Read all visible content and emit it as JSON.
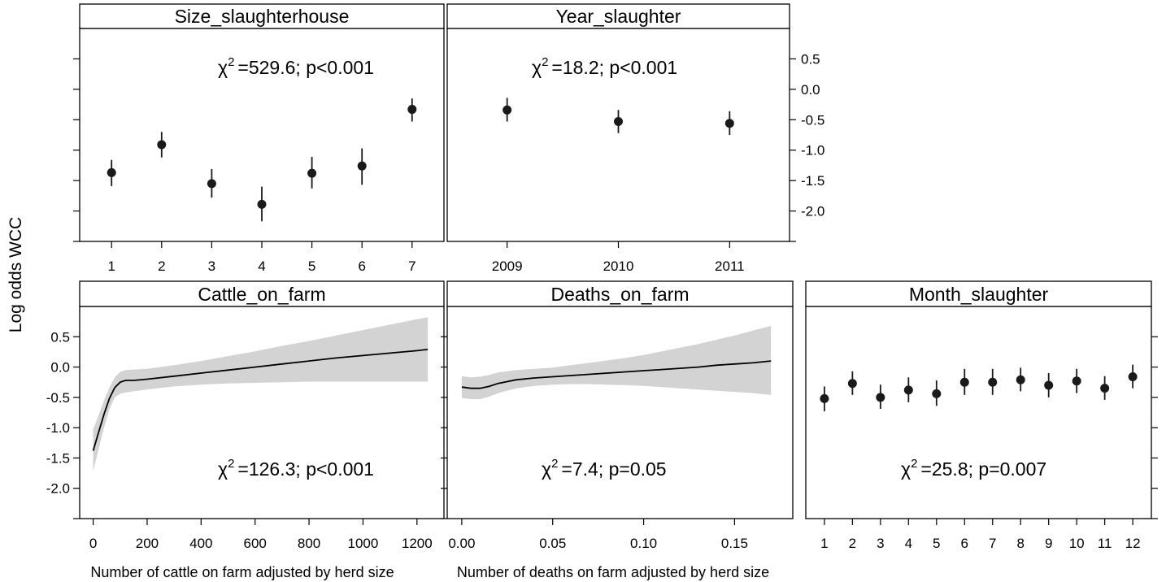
{
  "y_axis_label": "Log odds WCC",
  "chart_data": [
    {
      "type": "scatter",
      "title": "Size_slaughterhouse",
      "annotation": "=529.6; p<0.001",
      "annotation_symbol": "χ",
      "annotation_sup": "2",
      "xlabel": "",
      "ylabel": "Log odds WCC",
      "categories": [
        "1",
        "2",
        "3",
        "4",
        "5",
        "6",
        "7"
      ],
      "values": [
        -1.37,
        -0.91,
        -1.55,
        -1.89,
        -1.38,
        -1.26,
        -0.33
      ],
      "ci_low": [
        -1.59,
        -1.12,
        -1.78,
        -2.17,
        -1.63,
        -1.57,
        -0.53
      ],
      "ci_high": [
        -1.16,
        -0.7,
        -1.31,
        -1.6,
        -1.11,
        -0.97,
        -0.15
      ],
      "ylim": [
        -2.5,
        1.0
      ],
      "y_ticks": [
        "0.5",
        "0.0",
        "-0.5",
        "-1.0",
        "-1.5",
        "-2.0"
      ],
      "y_tick_side": "none"
    },
    {
      "type": "scatter",
      "title": "Year_slaughter",
      "annotation": "=18.2; p<0.001",
      "annotation_symbol": "χ",
      "annotation_sup": "2",
      "xlabel": "",
      "categories": [
        "2009",
        "2010",
        "2011"
      ],
      "values": [
        -0.34,
        -0.53,
        -0.56
      ],
      "ci_low": [
        -0.53,
        -0.72,
        -0.75
      ],
      "ci_high": [
        -0.14,
        -0.34,
        -0.36
      ],
      "ylim": [
        -2.5,
        1.0
      ],
      "y_ticks": [
        "0.5",
        "0.0",
        "-0.5",
        "-1.0",
        "-1.5",
        "-2.0"
      ],
      "y_tick_side": "right"
    },
    {
      "type": "line",
      "title": "Cattle_on_farm",
      "annotation": "=126.3; p<0.001",
      "annotation_symbol": "χ",
      "annotation_sup": "2",
      "xlabel": "Number of cattle on farm adjusted by herd size",
      "x": [
        0,
        20,
        40,
        60,
        80,
        100,
        120,
        150,
        200,
        300,
        400,
        500,
        600,
        700,
        800,
        900,
        1000,
        1100,
        1200,
        1240
      ],
      "y": [
        -1.38,
        -1.08,
        -0.78,
        -0.52,
        -0.34,
        -0.25,
        -0.22,
        -0.22,
        -0.2,
        -0.15,
        -0.1,
        -0.05,
        0.0,
        0.05,
        0.1,
        0.15,
        0.19,
        0.23,
        0.27,
        0.29
      ],
      "ci_low": [
        -1.72,
        -1.36,
        -1.0,
        -0.7,
        -0.5,
        -0.44,
        -0.42,
        -0.4,
        -0.37,
        -0.32,
        -0.29,
        -0.27,
        -0.26,
        -0.25,
        -0.24,
        -0.24,
        -0.24,
        -0.24,
        -0.24,
        -0.24
      ],
      "ci_high": [
        -1.03,
        -0.8,
        -0.55,
        -0.34,
        -0.17,
        -0.08,
        -0.05,
        -0.04,
        -0.03,
        0.03,
        0.1,
        0.18,
        0.26,
        0.35,
        0.43,
        0.52,
        0.61,
        0.7,
        0.79,
        0.82
      ],
      "xlim": [
        -50,
        1300
      ],
      "x_ticks": [
        "0",
        "200",
        "400",
        "600",
        "800",
        "1000",
        "1200"
      ],
      "ylim": [
        -2.5,
        1.0
      ],
      "y_ticks": [
        "0.5",
        "0.0",
        "-0.5",
        "-1.0",
        "-1.5",
        "-2.0"
      ],
      "y_tick_side": "left"
    },
    {
      "type": "line",
      "title": "Deaths_on_farm",
      "annotation": "=7.4; p=0.05",
      "annotation_symbol": "χ",
      "annotation_sup": "2",
      "xlabel": "Number of deaths on farm adjusted by herd size",
      "x": [
        0.0,
        0.005,
        0.01,
        0.015,
        0.02,
        0.03,
        0.04,
        0.05,
        0.06,
        0.07,
        0.08,
        0.09,
        0.1,
        0.11,
        0.12,
        0.13,
        0.14,
        0.15,
        0.16,
        0.17
      ],
      "y": [
        -0.33,
        -0.35,
        -0.35,
        -0.32,
        -0.27,
        -0.21,
        -0.18,
        -0.16,
        -0.14,
        -0.12,
        -0.1,
        -0.08,
        -0.06,
        -0.04,
        -0.02,
        0.0,
        0.03,
        0.05,
        0.07,
        0.1
      ],
      "ci_low": [
        -0.51,
        -0.53,
        -0.53,
        -0.49,
        -0.43,
        -0.35,
        -0.31,
        -0.29,
        -0.28,
        -0.28,
        -0.29,
        -0.3,
        -0.31,
        -0.33,
        -0.35,
        -0.37,
        -0.39,
        -0.41,
        -0.43,
        -0.46
      ],
      "ci_high": [
        -0.15,
        -0.17,
        -0.16,
        -0.13,
        -0.09,
        -0.05,
        -0.03,
        -0.01,
        0.03,
        0.07,
        0.11,
        0.15,
        0.2,
        0.26,
        0.32,
        0.38,
        0.45,
        0.52,
        0.6,
        0.68
      ],
      "xlim": [
        -0.008,
        0.182
      ],
      "x_ticks": [
        "0.00",
        "0.05",
        "0.10",
        "0.15"
      ],
      "ylim": [
        -2.5,
        1.0
      ],
      "y_ticks": [
        "0.5",
        "0.0",
        "-0.5",
        "-1.0",
        "-1.5",
        "-2.0"
      ],
      "y_tick_side": "none"
    },
    {
      "type": "scatter",
      "title": "Month_slaughter",
      "annotation": "=25.8; p=0.007",
      "annotation_symbol": "χ",
      "annotation_sup": "2",
      "xlabel": "",
      "categories": [
        "1",
        "2",
        "3",
        "4",
        "5",
        "6",
        "7",
        "8",
        "9",
        "10",
        "11",
        "12"
      ],
      "values": [
        -0.52,
        -0.27,
        -0.5,
        -0.38,
        -0.44,
        -0.25,
        -0.25,
        -0.21,
        -0.3,
        -0.23,
        -0.35,
        -0.16
      ],
      "ci_low": [
        -0.73,
        -0.46,
        -0.69,
        -0.58,
        -0.64,
        -0.46,
        -0.46,
        -0.4,
        -0.5,
        -0.43,
        -0.54,
        -0.35
      ],
      "ci_high": [
        -0.32,
        -0.07,
        -0.29,
        -0.17,
        -0.22,
        -0.03,
        -0.03,
        -0.01,
        -0.1,
        -0.03,
        -0.15,
        0.04
      ],
      "ylim": [
        -2.5,
        1.0
      ],
      "y_ticks": [
        "0.5",
        "0.0",
        "-0.5",
        "-1.0",
        "-1.5",
        "-2.0"
      ],
      "y_tick_side": "right"
    }
  ],
  "colors": {
    "band": "#d3d3d3",
    "line": "#000000",
    "point": "#1a1a1a",
    "strip_bg": "#ffffff"
  }
}
